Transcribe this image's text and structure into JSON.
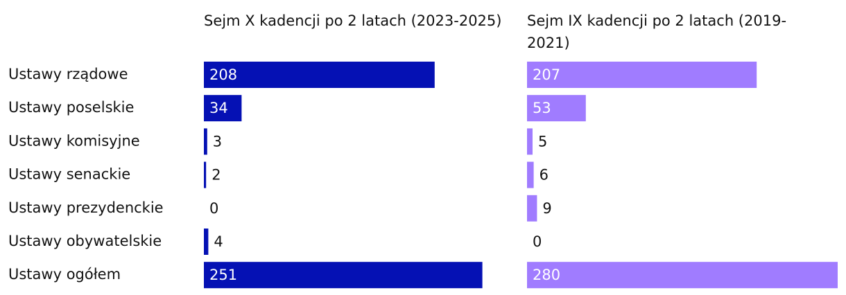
{
  "chart_data": {
    "type": "bar",
    "categories": [
      "Ustawy rządowe",
      "Ustawy poselskie",
      "Ustawy komisyjne",
      "Ustawy senackie",
      "Ustawy prezydenckie",
      "Ustawy obywatelskie",
      "Ustawy ogółem"
    ],
    "series": [
      {
        "name": "Sejm X kadencji po 2 latach (2023-2025)",
        "color": "#0511b4",
        "values": [
          208,
          34,
          3,
          2,
          0,
          4,
          251
        ]
      },
      {
        "name": "Sejm IX kadencji po 2 latach (2019-2021)",
        "color": "#a07cff",
        "values": [
          207,
          53,
          5,
          6,
          9,
          0,
          280
        ]
      }
    ]
  }
}
